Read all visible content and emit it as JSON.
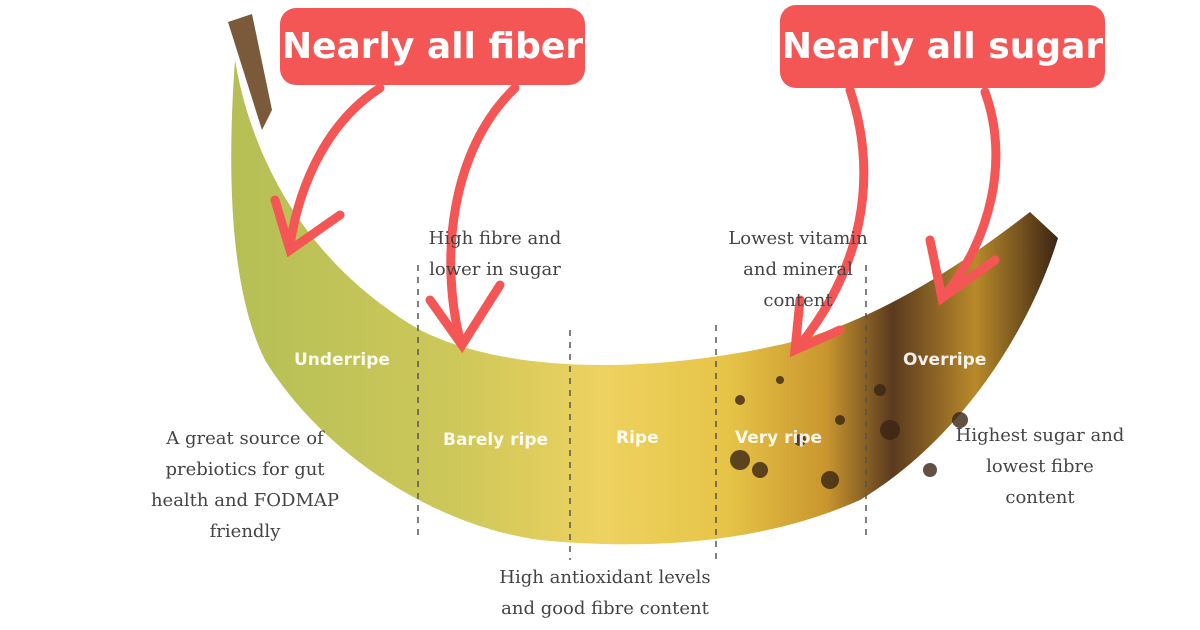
{
  "callouts": {
    "fiber": "Nearly all fiber",
    "sugar": "Nearly all sugar"
  },
  "stages": [
    "Underripe",
    "Barely ripe",
    "Ripe",
    "Very ripe",
    "Overripe"
  ],
  "notes": {
    "underripe": "A great source of prebiotics for gut health and FODMAP friendly",
    "barely_ripe": "High fibre and lower in sugar",
    "ripe": "High antioxidant levels and good fibre content",
    "very_ripe": "Lowest vitamin and mineral content",
    "overripe": "Highest sugar and lowest fibre content"
  },
  "colors": {
    "callout": "#f45656",
    "underripe": "#b9c25a",
    "ripe": "#ecc94a",
    "overripe": "#4a2e1a"
  }
}
